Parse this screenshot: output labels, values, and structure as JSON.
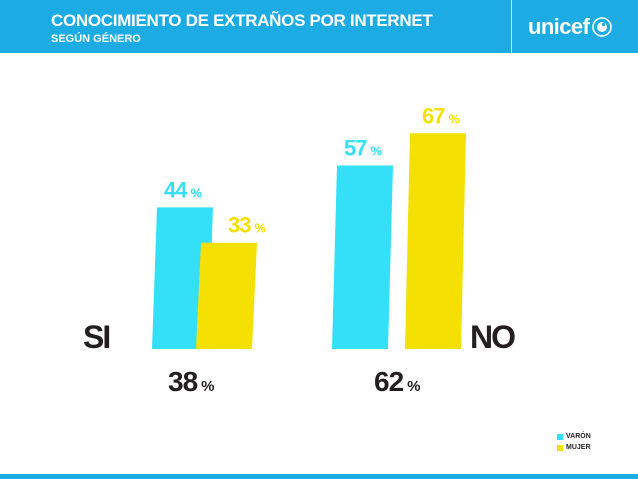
{
  "header": {
    "title": "CONOCIMIENTO DE EXTRAÑOS POR INTERNET",
    "subtitle": "SEGÚN GÉNERO",
    "logo_text": "unicef",
    "logo_icon": "unicef-emblem-icon"
  },
  "colors": {
    "brand_blue": "#1cabe2",
    "varon": "#33e0f7",
    "mujer": "#f5e003",
    "text_dark": "#231f20"
  },
  "chart_data": {
    "type": "bar",
    "categories": [
      "SI",
      "NO"
    ],
    "series": [
      {
        "name": "VARÓN",
        "values": [
          44,
          57
        ]
      },
      {
        "name": "MUJER",
        "values": [
          33,
          67
        ]
      }
    ],
    "totals": [
      38,
      62
    ],
    "unit": "%",
    "ylim": [
      0,
      67
    ]
  },
  "legend": [
    {
      "label": "VARÓN"
    },
    {
      "label": "MUJER"
    }
  ]
}
